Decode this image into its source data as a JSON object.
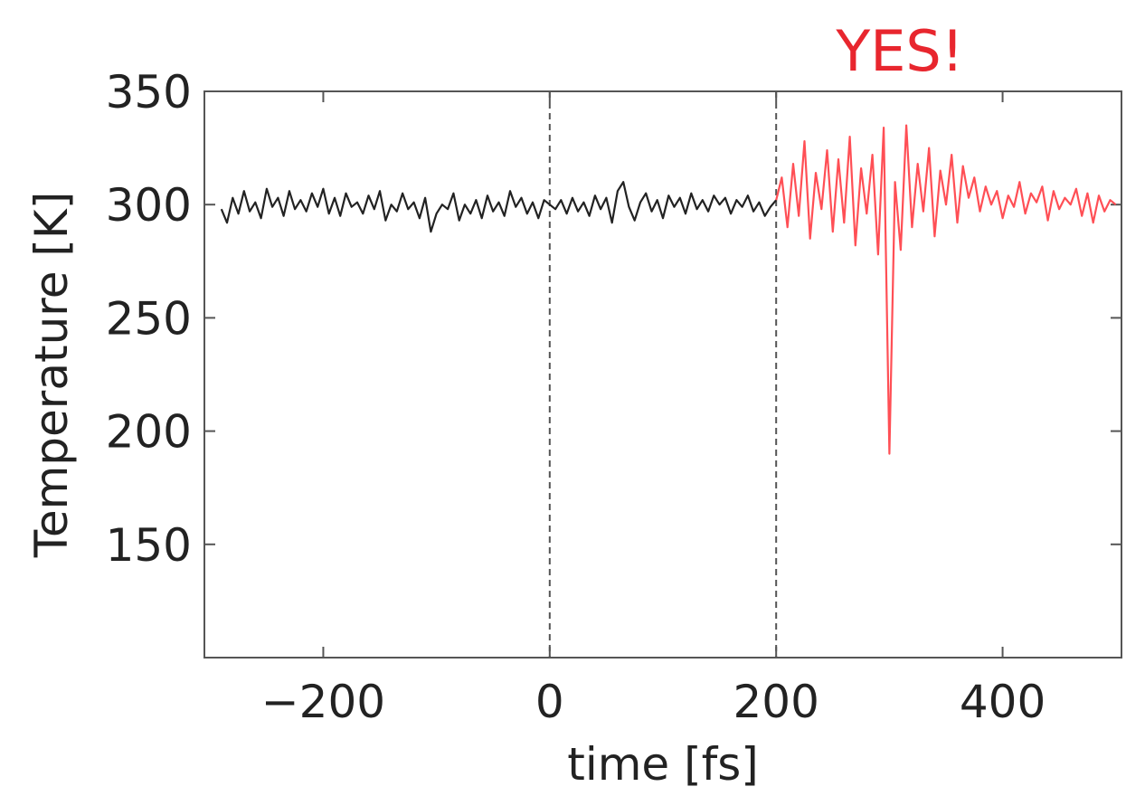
{
  "chart_data": {
    "type": "line",
    "title": "",
    "annotation": "YES!",
    "xlabel": "time [fs]",
    "ylabel": "Temperature [K]",
    "xlim": [
      -305,
      505
    ],
    "ylim": [
      100,
      350
    ],
    "xticks": [
      -200,
      0,
      200,
      400
    ],
    "xtick_labels": [
      "−200",
      "0",
      "200",
      "400"
    ],
    "yticks": [
      150,
      200,
      250,
      300,
      350
    ],
    "ytick_labels": [
      "150",
      "200",
      "250",
      "300",
      "350"
    ],
    "vlines": [
      0,
      200
    ],
    "grid": false,
    "colors": {
      "before": "#222222",
      "after": "#ff4f55",
      "annotation": "#e8262e"
    },
    "series": [
      {
        "x": [
          -290,
          -285,
          -280,
          -275,
          -270,
          -265,
          -260,
          -255,
          -250,
          -245,
          -240,
          -235,
          -230,
          -225,
          -220,
          -215,
          -210,
          -205,
          -200,
          -195,
          -190,
          -185,
          -180,
          -175,
          -170,
          -165,
          -160,
          -155,
          -150,
          -145,
          -140,
          -135,
          -130,
          -125,
          -120,
          -115,
          -110,
          -105,
          -100,
          -95,
          -90,
          -85,
          -80,
          -75,
          -70,
          -65,
          -60,
          -55,
          -50,
          -45,
          -40,
          -35,
          -30,
          -25,
          -20,
          -15,
          -10,
          -5,
          0,
          5,
          10,
          15,
          20,
          25,
          30,
          35,
          40,
          45,
          50,
          55,
          60,
          65,
          70,
          75,
          80,
          85,
          90,
          95,
          100,
          105,
          110,
          115,
          120,
          125,
          130,
          135,
          140,
          145,
          150,
          155,
          160,
          165,
          170,
          175,
          180,
          185,
          190,
          195,
          200
        ],
        "values": [
          298,
          292,
          303,
          296,
          306,
          297,
          301,
          294,
          307,
          299,
          303,
          295,
          306,
          298,
          302,
          297,
          305,
          299,
          307,
          296,
          303,
          295,
          305,
          299,
          301,
          296,
          304,
          298,
          306,
          293,
          300,
          297,
          305,
          298,
          301,
          294,
          303,
          288,
          296,
          300,
          298,
          305,
          293,
          300,
          296,
          302,
          294,
          304,
          297,
          301,
          295,
          306,
          299,
          303,
          296,
          301,
          294,
          302,
          300,
          298,
          302,
          296,
          303,
          297,
          301,
          295,
          304,
          298,
          303,
          292,
          306,
          310,
          299,
          293,
          301,
          305,
          297,
          302,
          294,
          304,
          299,
          303,
          296,
          305,
          298,
          302,
          297,
          304,
          300,
          303,
          296,
          302,
          299,
          304,
          297,
          301,
          295,
          299,
          302
        ]
      },
      {
        "x": [
          200,
          205,
          210,
          215,
          220,
          225,
          230,
          235,
          240,
          245,
          250,
          255,
          260,
          265,
          270,
          275,
          280,
          285,
          290,
          295,
          300,
          305,
          310,
          315,
          320,
          325,
          330,
          335,
          340,
          345,
          350,
          355,
          360,
          365,
          370,
          375,
          380,
          385,
          390,
          395,
          400,
          405,
          410,
          415,
          420,
          425,
          430,
          435,
          440,
          445,
          450,
          455,
          460,
          465,
          470,
          475,
          480,
          485,
          490,
          495,
          500
        ],
        "values": [
          302,
          312,
          290,
          318,
          295,
          328,
          285,
          314,
          298,
          324,
          288,
          320,
          292,
          330,
          282,
          316,
          296,
          322,
          278,
          334,
          190,
          310,
          280,
          335,
          290,
          318,
          297,
          325,
          286,
          315,
          300,
          322,
          292,
          317,
          303,
          312,
          297,
          308,
          300,
          306,
          294,
          304,
          299,
          310,
          296,
          305,
          301,
          308,
          293,
          306,
          298,
          303,
          300,
          307,
          295,
          305,
          292,
          304,
          297,
          302,
          300
        ]
      }
    ]
  }
}
